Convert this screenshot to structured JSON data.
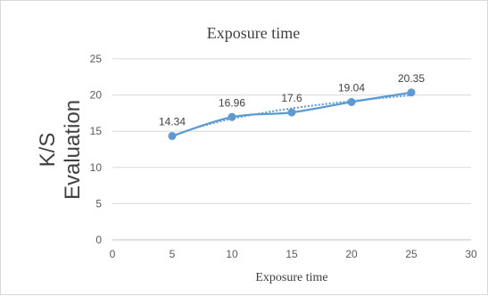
{
  "chart_data": {
    "type": "line",
    "title": "Exposure time",
    "xlabel": "Exposure time",
    "ylabel_lines": [
      "K/S",
      "Evaluation"
    ],
    "xlim": [
      0,
      30
    ],
    "ylim": [
      0,
      25
    ],
    "xticks": [
      0,
      5,
      10,
      15,
      20,
      25,
      30
    ],
    "yticks": [
      0,
      5,
      10,
      15,
      20,
      25
    ],
    "grid": "horizontal",
    "legend": "none",
    "series": [
      {
        "x": [
          5,
          10,
          15,
          20,
          25
        ],
        "y": [
          14.34,
          16.96,
          17.6,
          19.04,
          20.35
        ],
        "labels": [
          "14.34",
          "16.96",
          "17.6",
          "19.04",
          "20.35"
        ],
        "color": "#5b9bd5",
        "trendline": "logarithmic (dotted)"
      }
    ]
  }
}
